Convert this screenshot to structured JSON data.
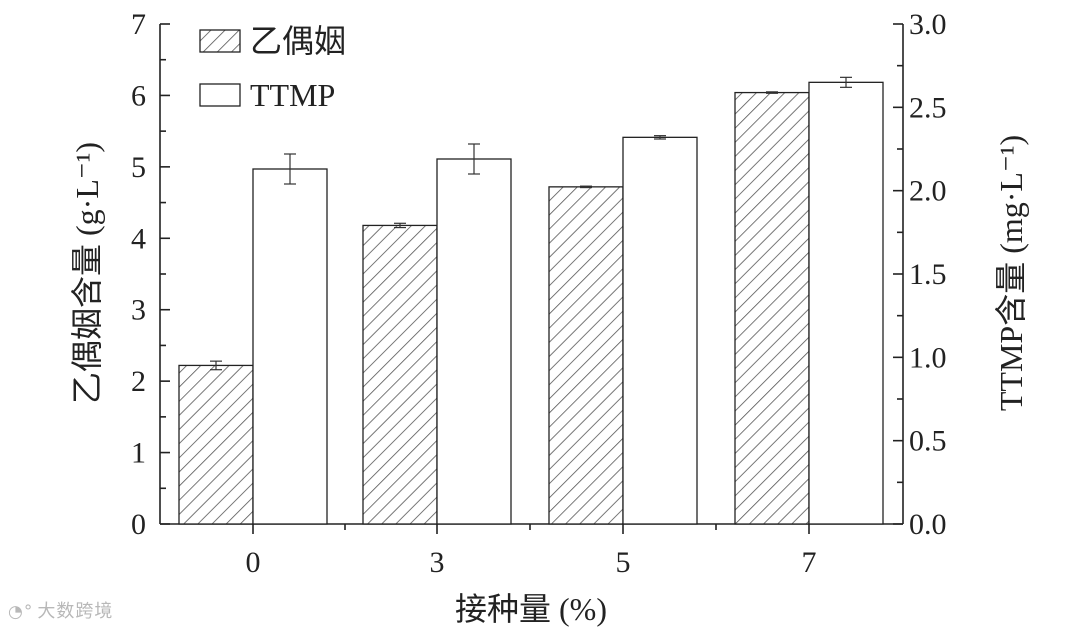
{
  "chart_data": {
    "type": "bar",
    "categories": [
      "0",
      "3",
      "5",
      "7"
    ],
    "xlabel": "接种量 (%)",
    "ylabel_left": "乙偶姻含量 (g·L⁻¹)",
    "ylabel_right": "TTMP含量 (mg·L⁻¹)",
    "ylim_left": [
      0,
      7
    ],
    "ylim_right": [
      0,
      3.0
    ],
    "yticks_left": [
      "0",
      "1",
      "2",
      "3",
      "4",
      "5",
      "6",
      "7"
    ],
    "yticks_right": [
      "0.0",
      "0.5",
      "1.0",
      "1.5",
      "2.0",
      "2.5",
      "3.0"
    ],
    "legend_position": "top-left",
    "series": [
      {
        "name": "乙偶姻",
        "axis": "left",
        "pattern": "hatched",
        "values": [
          2.22,
          4.18,
          4.72,
          6.04
        ],
        "errors": [
          0.06,
          0.03,
          0.01,
          0.01
        ]
      },
      {
        "name": "TTMP",
        "axis": "right",
        "pattern": "open",
        "values": [
          2.13,
          2.19,
          2.32,
          2.65
        ],
        "errors": [
          0.09,
          0.09,
          0.01,
          0.03
        ]
      }
    ],
    "colors": {
      "axis": "#222222",
      "hatch": "#555555",
      "bar_fill": "#ffffff"
    }
  },
  "watermark": {
    "icon": "weibo-icon",
    "text": "大数跨境"
  }
}
